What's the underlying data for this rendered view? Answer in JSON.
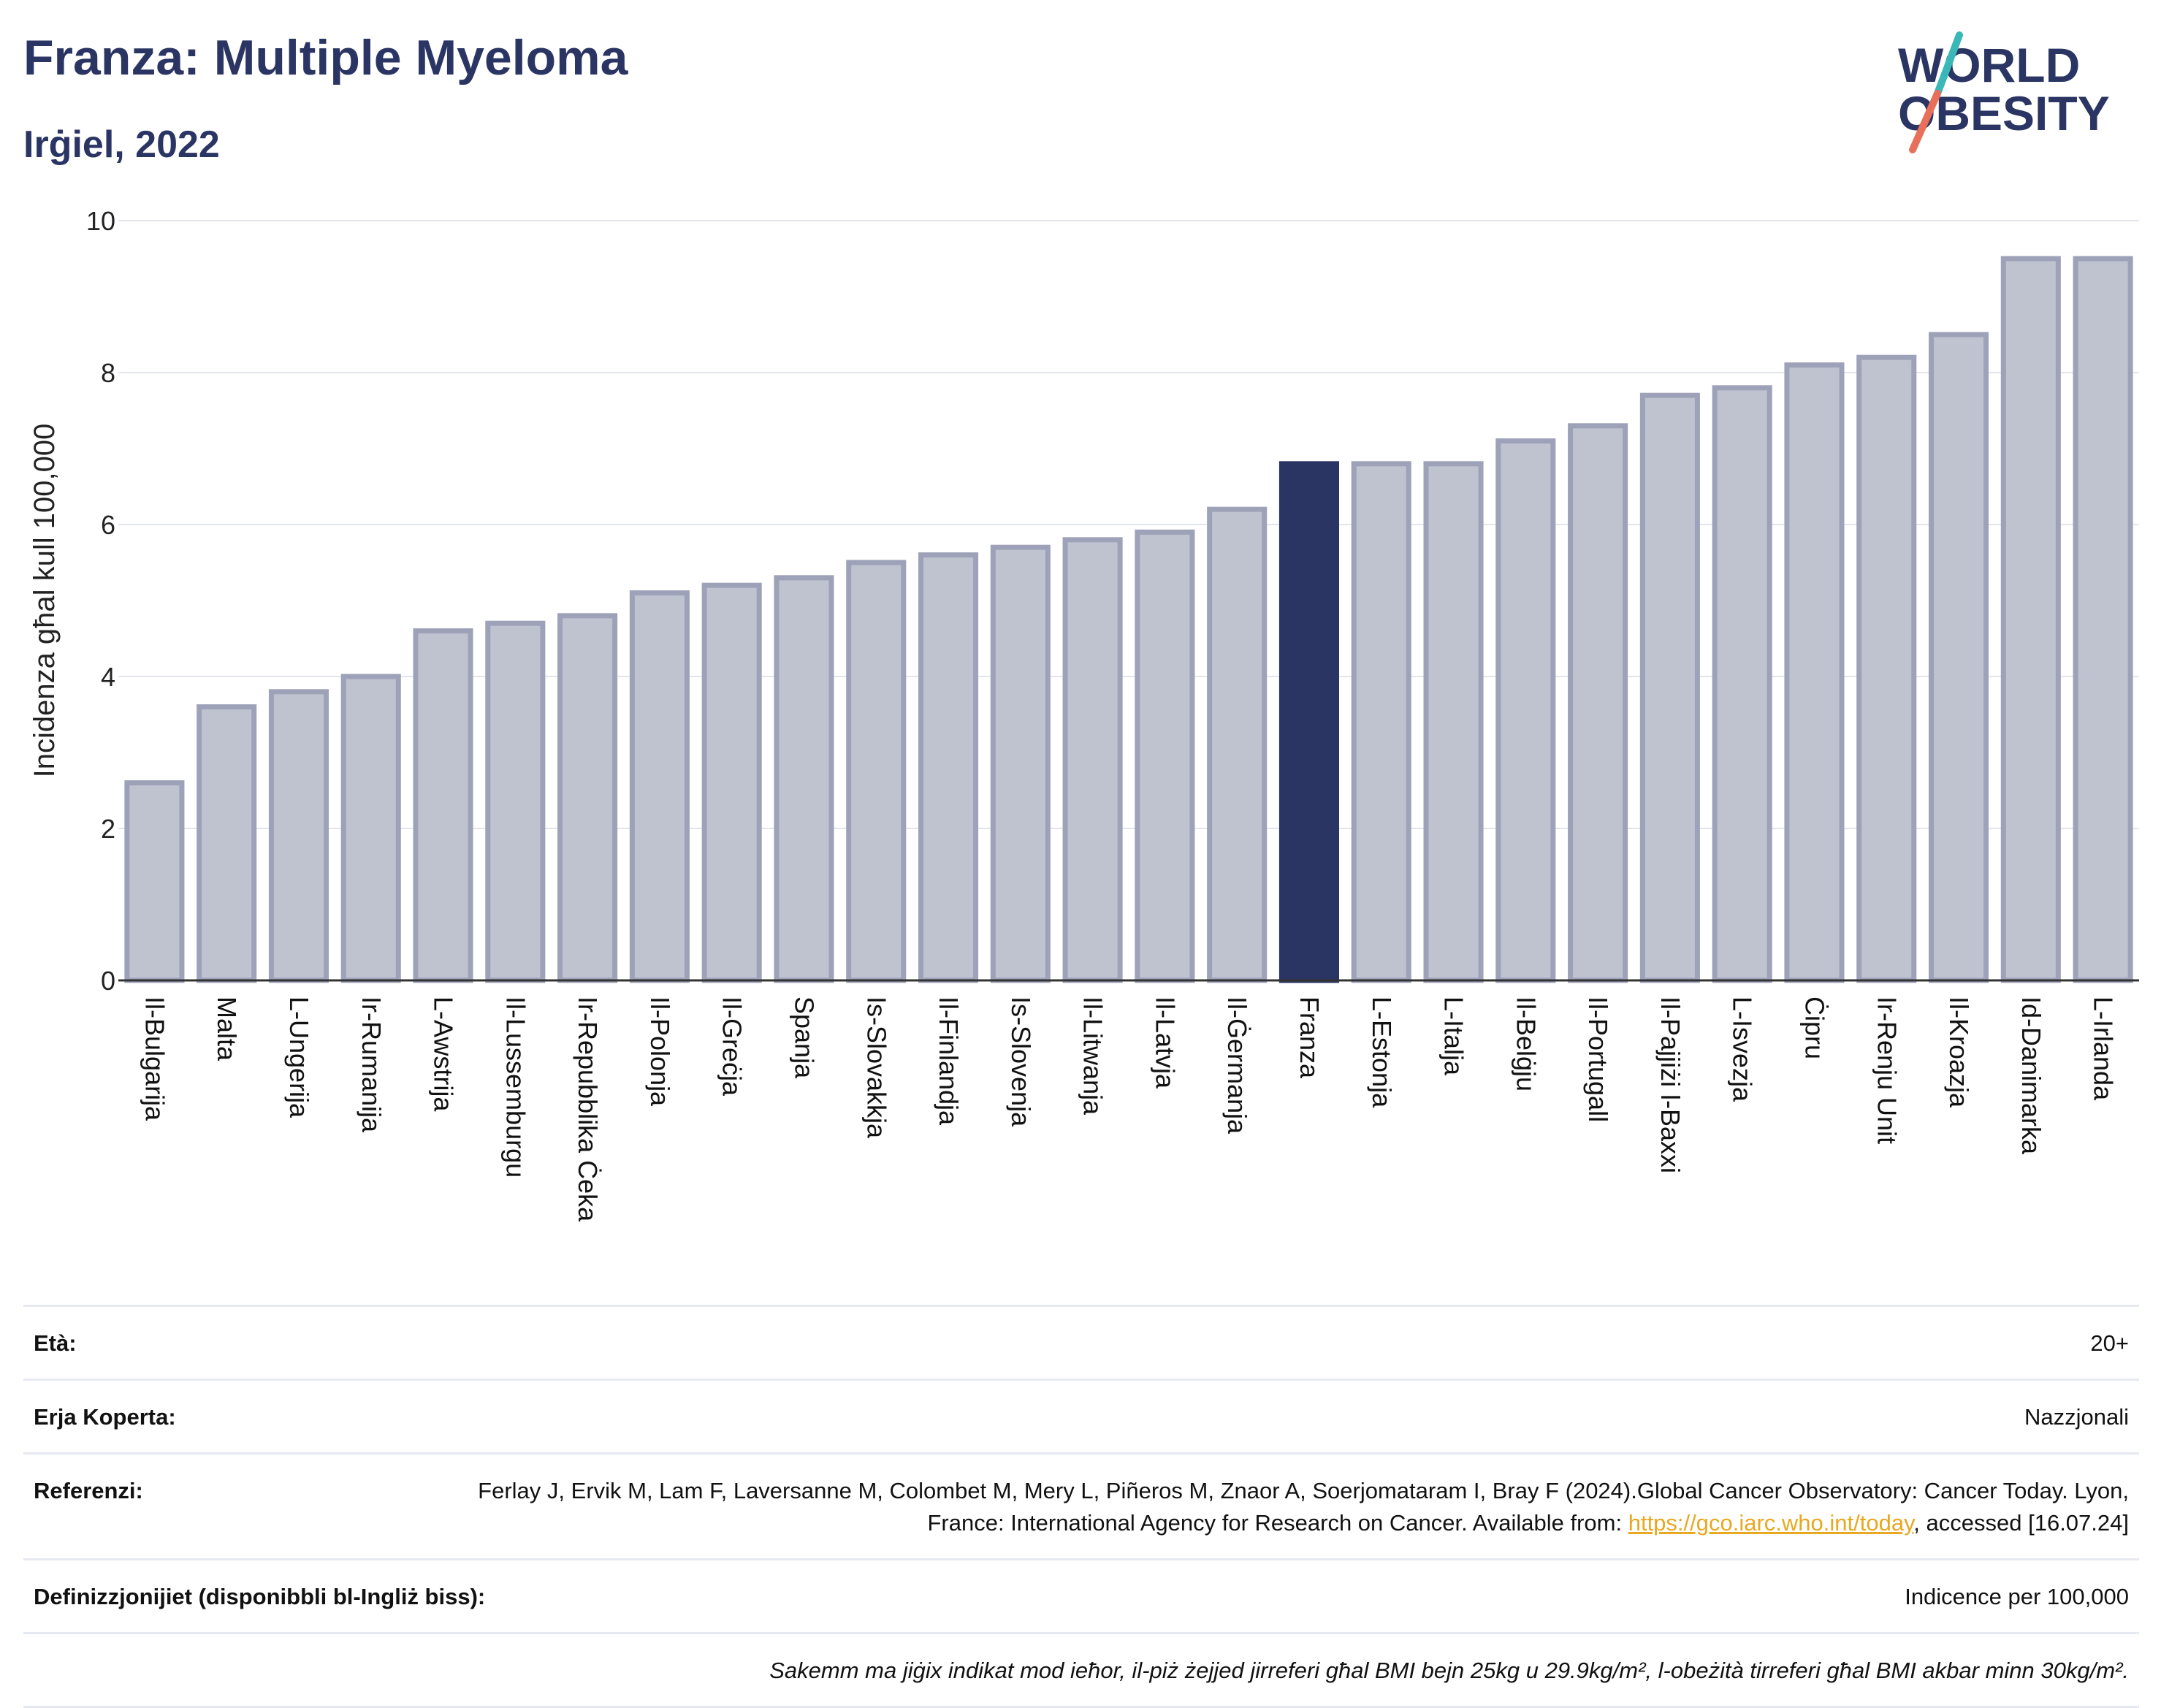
{
  "header": {
    "title": "Franza: Multiple Myeloma",
    "subtitle": "Irġiel, 2022",
    "logo_line1": "WORLD",
    "logo_line2": "OBESITY"
  },
  "colors": {
    "highlight": "#2b3563",
    "bar_fill": "#bfc2cf",
    "bar_stroke": "#9da2b8",
    "text_dark": "#2b3563",
    "logo_teal": "#3ab8b8",
    "logo_coral": "#e8705a",
    "link": "#e8a820"
  },
  "chart_data": {
    "type": "bar",
    "title": "Franza: Multiple Myeloma",
    "subtitle": "Irġiel, 2022",
    "xlabel": "",
    "ylabel": "Incidenza għal kull 100,000",
    "ylim": [
      0,
      10
    ],
    "yticks": [
      0,
      2,
      4,
      6,
      8,
      10
    ],
    "grid": true,
    "highlight_category": "Franza",
    "categories": [
      "Il-Bulgarija",
      "Malta",
      "L-Ungerija",
      "Ir-Rumanija",
      "L-Awstrija",
      "Il-Lussemburgu",
      "Ir-Repubblika Ċeka",
      "Il-Polonja",
      "Il-Greċja",
      "Spanja",
      "Is-Slovakkja",
      "Il-Finlandja",
      "Is-Slovenja",
      "Il-Litwanja",
      "Il-Latvja",
      "Il-Ġermanja",
      "Franza",
      "L-Estonja",
      "L-Italja",
      "Il-Belġju",
      "Il-Portugall",
      "Il-Pajjiżi l-Baxxi",
      "L-Isvezja",
      "Ċipru",
      "Ir-Renju Unit",
      "Il-Kroazja",
      "Id-Danimarka",
      "L-Irlanda"
    ],
    "values": [
      2.6,
      3.6,
      3.8,
      4.0,
      4.6,
      4.7,
      4.8,
      5.1,
      5.2,
      5.3,
      5.5,
      5.6,
      5.7,
      5.8,
      5.9,
      6.2,
      6.8,
      6.8,
      6.8,
      7.1,
      7.3,
      7.7,
      7.8,
      8.1,
      8.2,
      8.5,
      9.5,
      9.5
    ]
  },
  "info": {
    "age_label": "Età:",
    "age_value": "20+",
    "area_label": "Erja Koperta:",
    "area_value": "Nazzjonali",
    "ref_label": "Referenzi:",
    "ref_text_1": "Ferlay J, Ervik M, Lam F, Laversanne M, Colombet M, Mery L, Piñeros M, Znaor A, Soerjomataram I, Bray F (2024).Global Cancer Observatory: Cancer Today. Lyon, France: International Agency for Research on Cancer. Available from: ",
    "ref_link": "https://gco.iarc.who.int/today",
    "ref_text_2": ", accessed [16.07.24]",
    "def_label": "Definizzjonijiet (disponibbli bl-Ingliż biss):",
    "def_value": "Indicence per 100,000",
    "note": "Sakemm ma jiġix indikat mod ieħor, il-piż żejjed jirreferi għal BMI bejn 25kg u 29.9kg/m², l-obeżità tirreferi għal BMI akbar minn 30kg/m²."
  }
}
